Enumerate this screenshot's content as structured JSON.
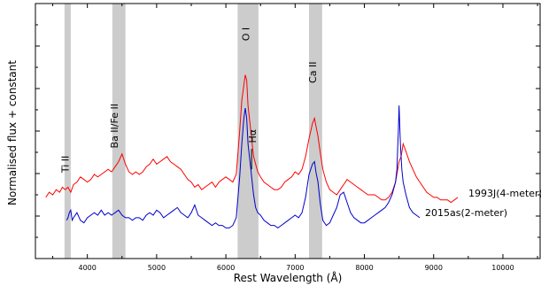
{
  "chart_data": {
    "type": "line",
    "xlabel": "Rest Wavelength (Å)",
    "ylabel": "Normalised flux + constant",
    "xlim": [
      3250,
      10550
    ],
    "ylim": [
      0,
      1
    ],
    "x_ticks": [
      "4000",
      "5000",
      "6000",
      "7000",
      "8000",
      "9000",
      "10000"
    ],
    "grid": false,
    "bands": [
      {
        "label": "Ti II",
        "x0": 3670,
        "x1": 3760,
        "label_x": 3730,
        "label_y": 0.37
      },
      {
        "label": "Ba II/Fe II",
        "x0": 4360,
        "x1": 4550,
        "label_x": 4440,
        "label_y": 0.52
      },
      {
        "label": "O I",
        "x0": 6170,
        "x1": 6470,
        "label_x": 6340,
        "label_y": 0.88
      },
      {
        "label": "Ca II",
        "x0": 7200,
        "x1": 7390,
        "label_x": 7300,
        "label_y": 0.73
      }
    ],
    "annotations": [
      {
        "text": "Hα",
        "x": 6435,
        "y": 0.48
      }
    ],
    "series": [
      {
        "name": "1993J(4-meter)",
        "color": "#ff0000",
        "x": [
          3400,
          3450,
          3500,
          3550,
          3600,
          3640,
          3680,
          3720,
          3760,
          3800,
          3850,
          3900,
          3950,
          4000,
          4050,
          4100,
          4150,
          4200,
          4250,
          4300,
          4350,
          4400,
          4450,
          4500,
          4550,
          4600,
          4650,
          4700,
          4750,
          4800,
          4850,
          4900,
          4950,
          5000,
          5050,
          5100,
          5150,
          5200,
          5250,
          5300,
          5350,
          5400,
          5450,
          5500,
          5550,
          5600,
          5650,
          5700,
          5750,
          5800,
          5850,
          5900,
          5950,
          6000,
          6050,
          6100,
          6150,
          6200,
          6230,
          6260,
          6280,
          6300,
          6320,
          6340,
          6360,
          6380,
          6400,
          6430,
          6460,
          6500,
          6550,
          6600,
          6650,
          6700,
          6750,
          6800,
          6850,
          6900,
          6950,
          7000,
          7050,
          7100,
          7150,
          7200,
          7250,
          7280,
          7300,
          7330,
          7360,
          7400,
          7450,
          7500,
          7550,
          7600,
          7650,
          7700,
          7750,
          7800,
          7850,
          7900,
          7950,
          8000,
          8050,
          8100,
          8150,
          8200,
          8250,
          8300,
          8350,
          8400,
          8450,
          8500,
          8530,
          8560,
          8600,
          8650,
          8700,
          8750,
          8800,
          8850,
          8900,
          8950,
          9000,
          9050,
          9100,
          9150,
          9200,
          9250,
          9300,
          9350
        ],
        "y": [
          0.24,
          0.26,
          0.25,
          0.27,
          0.26,
          0.28,
          0.27,
          0.28,
          0.26,
          0.29,
          0.3,
          0.32,
          0.31,
          0.3,
          0.31,
          0.33,
          0.32,
          0.33,
          0.34,
          0.35,
          0.34,
          0.36,
          0.38,
          0.41,
          0.37,
          0.34,
          0.33,
          0.34,
          0.33,
          0.34,
          0.36,
          0.37,
          0.39,
          0.37,
          0.38,
          0.39,
          0.4,
          0.38,
          0.37,
          0.36,
          0.35,
          0.33,
          0.31,
          0.3,
          0.28,
          0.29,
          0.27,
          0.28,
          0.29,
          0.3,
          0.28,
          0.3,
          0.31,
          0.32,
          0.31,
          0.3,
          0.33,
          0.5,
          0.62,
          0.68,
          0.72,
          0.7,
          0.6,
          0.55,
          0.5,
          0.45,
          0.4,
          0.37,
          0.34,
          0.32,
          0.3,
          0.29,
          0.28,
          0.27,
          0.27,
          0.28,
          0.3,
          0.31,
          0.32,
          0.34,
          0.33,
          0.35,
          0.4,
          0.47,
          0.53,
          0.55,
          0.52,
          0.48,
          0.42,
          0.35,
          0.3,
          0.27,
          0.26,
          0.25,
          0.27,
          0.29,
          0.31,
          0.3,
          0.29,
          0.28,
          0.27,
          0.26,
          0.25,
          0.25,
          0.25,
          0.24,
          0.23,
          0.23,
          0.24,
          0.26,
          0.3,
          0.38,
          0.4,
          0.45,
          0.42,
          0.38,
          0.35,
          0.32,
          0.3,
          0.28,
          0.26,
          0.25,
          0.24,
          0.24,
          0.23,
          0.23,
          0.23,
          0.22,
          0.23,
          0.24
        ]
      },
      {
        "name": "2015as(2-meter)",
        "color": "#0000cc",
        "x": [
          3700,
          3720,
          3740,
          3760,
          3780,
          3800,
          3850,
          3900,
          3950,
          4000,
          4050,
          4100,
          4150,
          4200,
          4250,
          4300,
          4350,
          4400,
          4450,
          4500,
          4550,
          4600,
          4650,
          4700,
          4750,
          4800,
          4850,
          4900,
          4950,
          5000,
          5050,
          5100,
          5150,
          5200,
          5250,
          5300,
          5350,
          5400,
          5450,
          5500,
          5550,
          5600,
          5650,
          5700,
          5750,
          5800,
          5850,
          5900,
          5950,
          6000,
          6050,
          6100,
          6150,
          6200,
          6230,
          6260,
          6280,
          6300,
          6320,
          6340,
          6360,
          6380,
          6400,
          6430,
          6460,
          6500,
          6550,
          6600,
          6650,
          6700,
          6750,
          6800,
          6850,
          6900,
          6950,
          7000,
          7050,
          7100,
          7150,
          7200,
          7250,
          7280,
          7300,
          7330,
          7360,
          7400,
          7450,
          7500,
          7550,
          7600,
          7650,
          7700,
          7750,
          7800,
          7850,
          7900,
          7950,
          8000,
          8050,
          8100,
          8150,
          8200,
          8250,
          8300,
          8350,
          8400,
          8450,
          8470,
          8480,
          8490,
          8500,
          8520,
          8540,
          8560,
          8600,
          8650,
          8700,
          8750,
          8800
        ],
        "y": [
          0.15,
          0.16,
          0.18,
          0.19,
          0.15,
          0.16,
          0.18,
          0.15,
          0.14,
          0.16,
          0.17,
          0.18,
          0.17,
          0.19,
          0.17,
          0.18,
          0.17,
          0.18,
          0.19,
          0.17,
          0.16,
          0.16,
          0.15,
          0.16,
          0.16,
          0.15,
          0.17,
          0.18,
          0.17,
          0.19,
          0.18,
          0.16,
          0.17,
          0.18,
          0.19,
          0.2,
          0.18,
          0.17,
          0.16,
          0.18,
          0.21,
          0.17,
          0.16,
          0.15,
          0.14,
          0.13,
          0.14,
          0.13,
          0.13,
          0.12,
          0.12,
          0.13,
          0.16,
          0.32,
          0.45,
          0.55,
          0.59,
          0.55,
          0.45,
          0.4,
          0.35,
          0.3,
          0.25,
          0.2,
          0.18,
          0.17,
          0.15,
          0.14,
          0.13,
          0.13,
          0.12,
          0.13,
          0.14,
          0.15,
          0.16,
          0.17,
          0.16,
          0.18,
          0.24,
          0.33,
          0.37,
          0.38,
          0.34,
          0.3,
          0.22,
          0.15,
          0.13,
          0.14,
          0.17,
          0.2,
          0.25,
          0.26,
          0.22,
          0.18,
          0.16,
          0.15,
          0.14,
          0.14,
          0.15,
          0.16,
          0.17,
          0.18,
          0.19,
          0.2,
          0.22,
          0.25,
          0.3,
          0.35,
          0.43,
          0.5,
          0.6,
          0.45,
          0.35,
          0.3,
          0.25,
          0.2,
          0.18,
          0.17,
          0.16
        ]
      }
    ]
  },
  "legend_labels": {
    "series0": "1993J(4-meter)",
    "series1": "2015as(2-meter)"
  }
}
